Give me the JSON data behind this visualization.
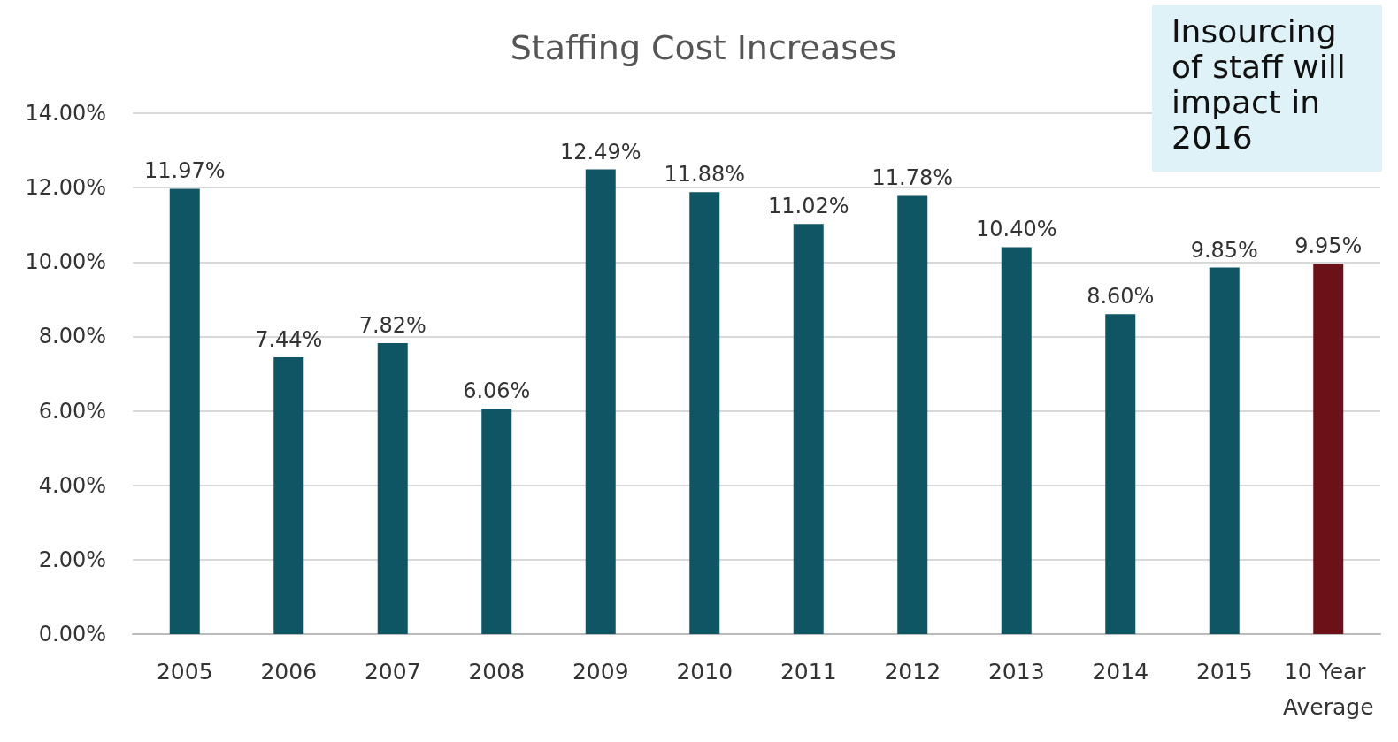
{
  "chart_data": {
    "type": "bar",
    "title": "Staffing Cost Increases",
    "categories": [
      "2005",
      "2006",
      "2007",
      "2008",
      "2009",
      "2010",
      "2011",
      "2012",
      "2013",
      "2014",
      "2015",
      "10 Year Average"
    ],
    "values": [
      11.97,
      7.44,
      7.82,
      6.06,
      12.49,
      11.88,
      11.02,
      11.78,
      10.4,
      8.6,
      9.85,
      9.95
    ],
    "colors": [
      "#0f5564",
      "#0f5564",
      "#0f5564",
      "#0f5564",
      "#0f5564",
      "#0f5564",
      "#0f5564",
      "#0f5564",
      "#0f5564",
      "#0f5564",
      "#0f5564",
      "#6b1219"
    ],
    "value_labels": [
      "11.97%",
      "7.44%",
      "7.82%",
      "6.06%",
      "12.49%",
      "11.88%",
      "11.02%",
      "11.78%",
      "10.40%",
      "8.60%",
      "9.85%",
      "9.95%"
    ],
    "ylim": [
      0,
      14
    ],
    "yticks": [
      {
        "value": 0,
        "label": "0.00%"
      },
      {
        "value": 2,
        "label": "2.00%"
      },
      {
        "value": 4,
        "label": "4.00%"
      },
      {
        "value": 6,
        "label": "6.00%"
      },
      {
        "value": 8,
        "label": "8.00%"
      },
      {
        "value": 10,
        "label": "10.00%"
      },
      {
        "value": 12,
        "label": "12.00%"
      },
      {
        "value": 14,
        "label": "14.00%"
      }
    ],
    "grid": "y",
    "annotations": [
      "Insourcing of staff will impact in 2016"
    ]
  }
}
